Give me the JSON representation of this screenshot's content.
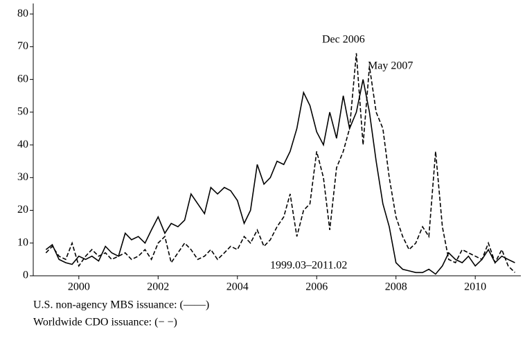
{
  "chart_data": {
    "type": "line",
    "annotations": [
      "Dec 2006",
      "May 2007",
      "1999.03–2011.02"
    ],
    "x": [
      1999.17,
      1999.33,
      1999.5,
      1999.67,
      1999.83,
      2000,
      2000.17,
      2000.33,
      2000.5,
      2000.67,
      2000.83,
      2001,
      2001.17,
      2001.33,
      2001.5,
      2001.67,
      2001.83,
      2002,
      2002.17,
      2002.33,
      2002.5,
      2002.67,
      2002.83,
      2003,
      2003.17,
      2003.33,
      2003.5,
      2003.67,
      2003.83,
      2004,
      2004.17,
      2004.33,
      2004.5,
      2004.67,
      2004.83,
      2005,
      2005.17,
      2005.33,
      2005.5,
      2005.67,
      2005.83,
      2006,
      2006.17,
      2006.33,
      2006.5,
      2006.67,
      2006.83,
      2007,
      2007.17,
      2007.33,
      2007.5,
      2007.67,
      2007.83,
      2008,
      2008.17,
      2008.33,
      2008.5,
      2008.67,
      2008.83,
      2009,
      2009.17,
      2009.33,
      2009.5,
      2009.67,
      2009.83,
      2010,
      2010.17,
      2010.33,
      2010.5,
      2010.67,
      2010.83,
      2011
    ],
    "series": [
      {
        "name": "U.S. non-agency MBS issuance: (——)",
        "color": "#000000",
        "dashed": false,
        "values": [
          8,
          9.5,
          5,
          4,
          3.5,
          6,
          5,
          6,
          4.5,
          9,
          7,
          6,
          13,
          11,
          12,
          10,
          14,
          18,
          13,
          16,
          15,
          17,
          25,
          22,
          19,
          27,
          25,
          27,
          26,
          23,
          16,
          20,
          34,
          28,
          30,
          35,
          34,
          38,
          45,
          56,
          52,
          44,
          40,
          50,
          42,
          55,
          45,
          50,
          60,
          50,
          35,
          22,
          15,
          4,
          2,
          1.5,
          1,
          1,
          2,
          0.5,
          3,
          7,
          5,
          4,
          6,
          3,
          5,
          8,
          4,
          6,
          5,
          4
        ]
      },
      {
        "name": "Worldwide CDO issuance: (− −)",
        "color": "#000000",
        "dashed": true,
        "values": [
          7,
          9,
          6,
          5,
          10,
          3,
          6,
          8,
          6,
          7,
          5,
          6,
          7,
          5,
          6,
          8,
          5,
          10,
          12,
          4,
          7,
          10,
          8,
          5,
          6,
          8,
          5,
          7,
          9,
          8,
          12,
          10,
          14,
          9,
          11,
          15,
          18,
          25,
          12,
          20,
          22,
          38,
          30,
          14,
          33,
          38,
          45,
          68,
          40,
          64,
          50,
          45,
          30,
          18,
          12,
          8,
          10,
          15,
          12,
          38,
          15,
          5,
          4,
          8,
          7,
          6,
          5,
          10,
          4,
          8,
          3,
          1
        ]
      }
    ],
    "xlim": [
      1998.85,
      2011.15
    ],
    "xticks": [
      2000,
      2002,
      2004,
      2006,
      2008,
      2010
    ],
    "ylim": [
      0,
      83
    ],
    "yticks": [
      0,
      10,
      20,
      30,
      40,
      50,
      60,
      70,
      80
    ]
  }
}
